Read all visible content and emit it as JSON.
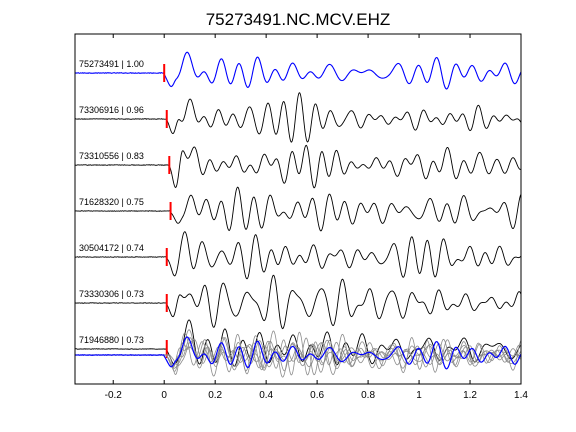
{
  "chart_data": {
    "type": "line",
    "title": "75273491.NC.MCV.EHZ",
    "xlabel": "",
    "ylabel": "",
    "xlim": [
      -0.35,
      1.4
    ],
    "x_ticks": [
      -0.2,
      0,
      0.2,
      0.4,
      0.6,
      0.8,
      1,
      1.2,
      1.4
    ],
    "x_tick_labels": [
      "-0.2",
      "0",
      "0.2",
      "0.4",
      "0.6",
      "0.8",
      "1",
      "1.2",
      "1.4"
    ],
    "grid": false,
    "pick_color": "#ff0000",
    "reference_color": "#0000ff",
    "trace_color": "#000000",
    "stack_color": "#8c8c8c",
    "traces": [
      {
        "label": "75273491 | 1.00",
        "event_id": "75273491",
        "correlation": 1.0,
        "pick_time": 0.0,
        "is_reference": true
      },
      {
        "label": "73306916 | 0.96",
        "event_id": "73306916",
        "correlation": 0.96,
        "pick_time": 0.01,
        "is_reference": false
      },
      {
        "label": "73310556 | 0.83",
        "event_id": "73310556",
        "correlation": 0.83,
        "pick_time": 0.02,
        "is_reference": false
      },
      {
        "label": "71628320 | 0.75",
        "event_id": "71628320",
        "correlation": 0.75,
        "pick_time": 0.025,
        "is_reference": false
      },
      {
        "label": "30504172 | 0.74",
        "event_id": "30504172",
        "correlation": 0.74,
        "pick_time": 0.01,
        "is_reference": false
      },
      {
        "label": "73330306 | 0.73",
        "event_id": "73330306",
        "correlation": 0.73,
        "pick_time": 0.01,
        "is_reference": false
      },
      {
        "label": "71946880 | 0.73",
        "event_id": "71946880",
        "correlation": 0.73,
        "pick_time": 0.01,
        "is_reference": false
      }
    ]
  }
}
